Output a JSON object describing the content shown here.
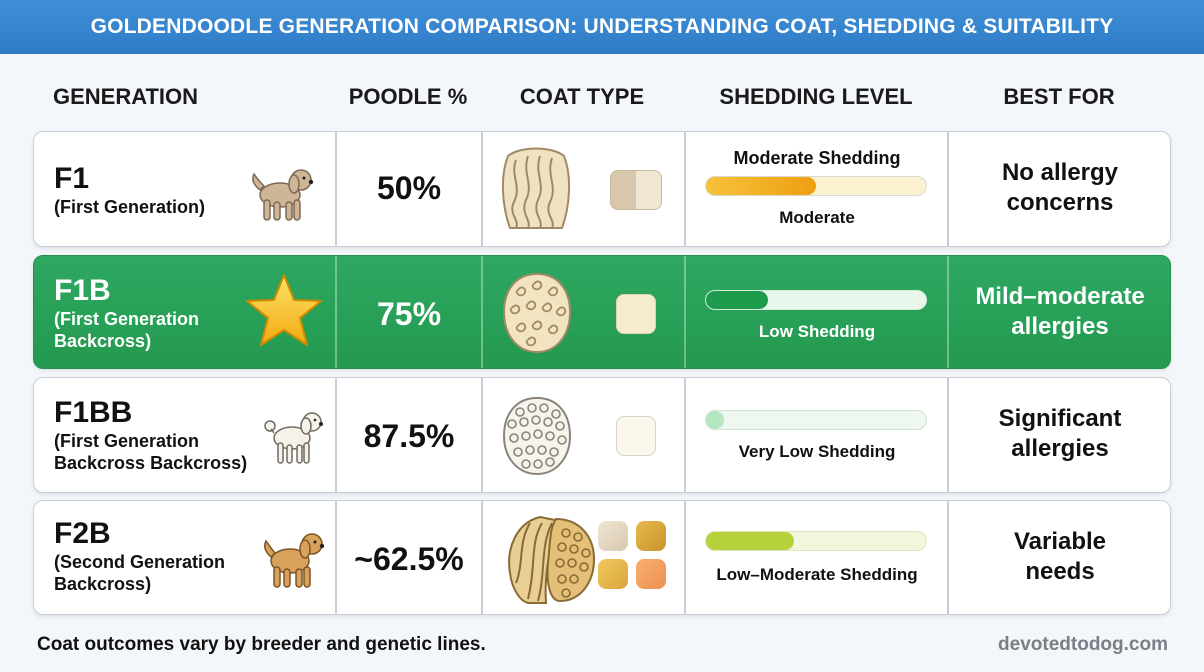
{
  "title": "GOLDENDOODLE GENERATION COMPARISON: UNDERSTANDING COAT, SHEDDING & SUITABILITY",
  "headers": {
    "generation": "GENERATION",
    "poodle_pct": "POODLE %",
    "coat_type": "COAT TYPE",
    "shedding_level": "SHEDDING LEVEL",
    "best_for": "BEST FOR"
  },
  "rows": [
    {
      "gen": "F1",
      "gen_full": "(First Generation)",
      "icon": "doodle-dog-icon",
      "poodle_pct": "50%",
      "coat": "wavy-coat-icon",
      "shedding_title": "Moderate Shedding",
      "shedding_label": "Moderate",
      "shedding_fill": 0.5,
      "best_for": "No allergy\nconcerns",
      "colors": {
        "fill": "#f2b21f",
        "track": "#fbf0cf"
      }
    },
    {
      "gen": "F1B",
      "gen_full": "(First Generation\nBackcross)",
      "icon": "star-icon",
      "poodle_pct": "75%",
      "coat": "curly-coat-icon",
      "shedding_title": "",
      "shedding_label": "Low Shedding",
      "shedding_fill": 0.28,
      "best_for": "Mild–moderate\nallergies",
      "colors": {
        "fill": "#22a052",
        "track": "#e9f6ec"
      }
    },
    {
      "gen": "F1BB",
      "gen_full": "(First Generation\nBackcross Backcross)",
      "icon": "poodle-outline-icon",
      "poodle_pct": "87.5%",
      "coat": "tight-curl-coat-icon",
      "shedding_title": "",
      "shedding_label": "Very Low Shedding",
      "shedding_fill": 0.08,
      "best_for": "Significant\nallergies",
      "colors": {
        "fill": "#b6e7bf",
        "track": "#eef8f0"
      }
    },
    {
      "gen": "F2B",
      "gen_full": "(Second Generation\nBackcross)",
      "icon": "golden-doodle-dog-icon",
      "poodle_pct": "~62.5%",
      "coat": "mixed-coat-icon",
      "shedding_title": "",
      "shedding_label": "Low–Moderate Shedding",
      "shedding_fill": 0.4,
      "best_for": "Variable\nneeds",
      "colors": {
        "fill": "#b5d23d",
        "track": "#f1f6dc"
      }
    }
  ],
  "footer": {
    "note": "Coat outcomes vary by breeder and genetic lines.",
    "site": "devotedtodog.com"
  },
  "colors": {
    "title_bar": "#2f7cc7",
    "highlight_row": "#24994f",
    "page_bg": "#f3f6fa"
  }
}
